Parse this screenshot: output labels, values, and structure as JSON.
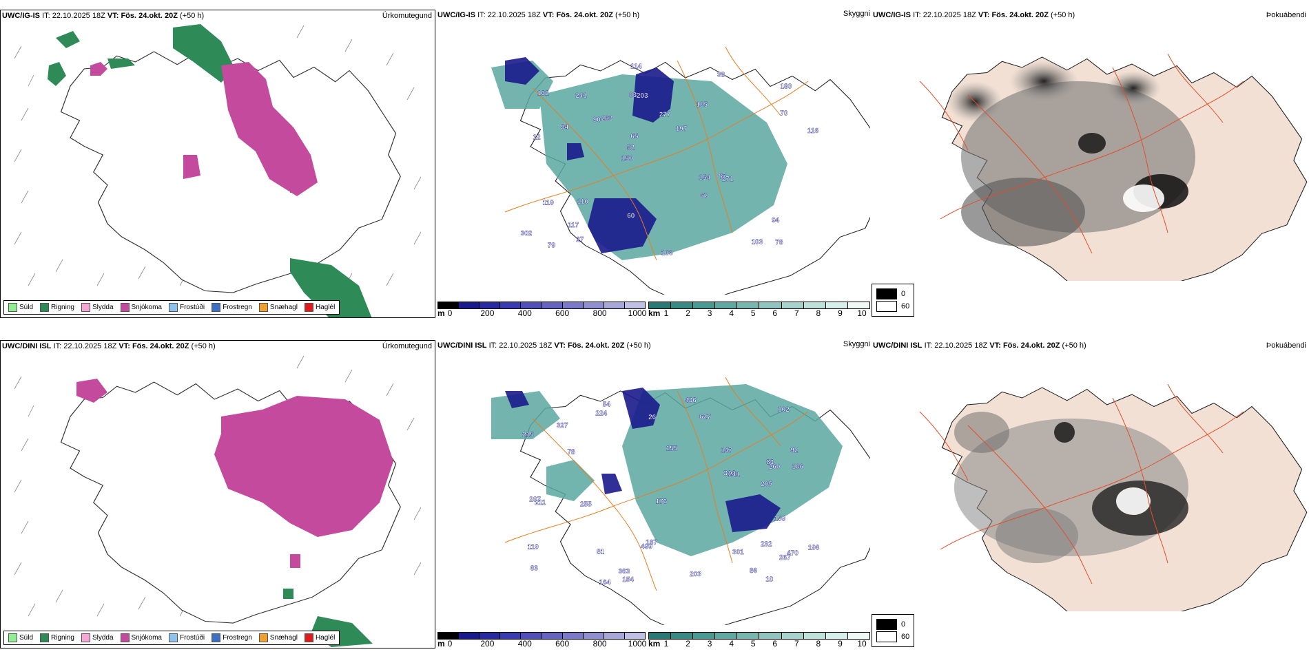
{
  "rows": [
    {
      "model": "UWC/IG-IS",
      "it_label": "IT:",
      "it_value": "22.10.2025 18Z",
      "vt_label": "VT:",
      "vt_value": "Fös. 24.okt. 20Z",
      "lead": "(+50 h)"
    },
    {
      "model": "UWC/DINI ISL",
      "it_label": "IT:",
      "it_value": "22.10.2025 18Z",
      "vt_label": "VT:",
      "vt_value": "Fös. 24.okt. 20Z",
      "lead": "(+50 h)"
    }
  ],
  "panel_titles": {
    "precip": "Úrkomutegund",
    "ceiling": "Skyggni",
    "cloud": "Þokuábendi"
  },
  "precip_legend": [
    {
      "label": "Súld",
      "color": "#90ee90"
    },
    {
      "label": "Rigning",
      "color": "#2e8b57"
    },
    {
      "label": "Slydda",
      "color": "#f4a6d7"
    },
    {
      "label": "Snjókoma",
      "color": "#c34a9d"
    },
    {
      "label": "Frostúði",
      "color": "#8cc2f0"
    },
    {
      "label": "Frostregn",
      "color": "#3a6fc4"
    },
    {
      "label": "Snæhagl",
      "color": "#f0a030"
    },
    {
      "label": "Haglél",
      "color": "#e01b1b"
    }
  ],
  "ceiling_bar": {
    "unit": "m",
    "ticks": [
      "0",
      "200",
      "400",
      "600",
      "800",
      "1000"
    ],
    "colors": [
      "#000000",
      "#1a1a8c",
      "#2a2aa0",
      "#3b3bb0",
      "#5050b8",
      "#6565c0",
      "#7a7ac8",
      "#9090d0",
      "#a8a8d8",
      "#c0c0e4"
    ]
  },
  "vis_bar": {
    "unit": "km",
    "ticks": [
      "1",
      "2",
      "3",
      "4",
      "5",
      "6",
      "7",
      "8",
      "9",
      "10"
    ],
    "colors": [
      "#2a7a74",
      "#3a8a84",
      "#4a9a94",
      "#60a8a2",
      "#78b6b0",
      "#90c4be",
      "#a8d2cc",
      "#c0e0da",
      "#d8eeea",
      "#f0f8f6"
    ]
  },
  "cloud_key": [
    {
      "label": "0",
      "color": "#000000"
    },
    {
      "label": "60",
      "color": "#ffffff"
    }
  ],
  "ceiling_labels_top": [
    "78",
    "12",
    "180",
    "150",
    "105",
    "79",
    "83",
    "277",
    "119",
    "263",
    "302",
    "117",
    "203",
    "197",
    "271",
    "162",
    "114",
    "116",
    "154",
    "70",
    "52",
    "60",
    "65",
    "241",
    "38",
    "110",
    "103",
    "94",
    "87",
    "103",
    "90",
    "94",
    "67",
    "27"
  ],
  "ceiling_labels_bottom": [
    "232",
    "92",
    "470",
    "155",
    "63",
    "54",
    "83",
    "81",
    "102",
    "78",
    "186",
    "215",
    "205",
    "154",
    "119",
    "327",
    "267",
    "224",
    "187",
    "260",
    "207",
    "211",
    "203",
    "314",
    "363",
    "499",
    "436",
    "627",
    "147",
    "196",
    "255",
    "301",
    "164",
    "176",
    "159",
    "86",
    "241",
    "26",
    "10"
  ]
}
